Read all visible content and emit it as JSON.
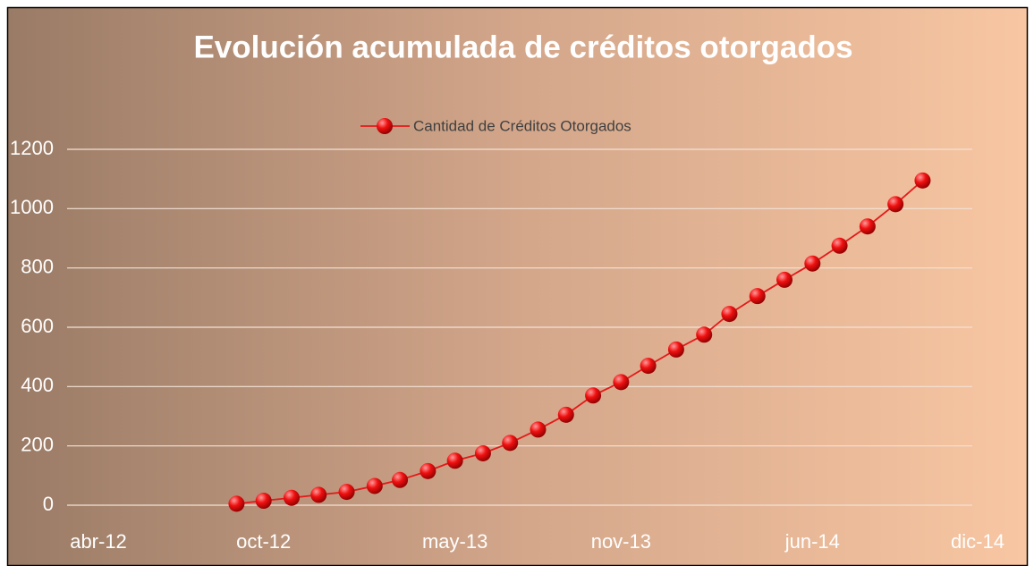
{
  "chart_data": {
    "type": "line",
    "title": "Evolución acumulada de créditos otorgados",
    "x": [
      "2012-09",
      "2012-10",
      "2012-11",
      "2012-12",
      "2013-01",
      "2013-02",
      "2013-03",
      "2013-04",
      "2013-05",
      "2013-06",
      "2013-07",
      "2013-08",
      "2013-09",
      "2013-10",
      "2013-11",
      "2013-12",
      "2014-01",
      "2014-02",
      "2014-03",
      "2014-04",
      "2014-05",
      "2014-06",
      "2014-07",
      "2014-08",
      "2014-09",
      "2014-10"
    ],
    "series": [
      {
        "name": "Cantidad de Créditos Otorgados",
        "color": "#e31a1a",
        "values": [
          5,
          15,
          25,
          35,
          45,
          65,
          85,
          115,
          150,
          175,
          210,
          255,
          305,
          370,
          415,
          470,
          525,
          575,
          645,
          705,
          760,
          815,
          875,
          940,
          1015,
          1095
        ]
      }
    ],
    "xlim": [
      "2012-04",
      "2014-12"
    ],
    "xticks": [
      {
        "value": "2012-04",
        "label": "abr-12"
      },
      {
        "value": "2012-10",
        "label": "oct-12"
      },
      {
        "value": "2013-05",
        "label": "may-13"
      },
      {
        "value": "2013-11",
        "label": "nov-13"
      },
      {
        "value": "2014-06",
        "label": "jun-14"
      },
      {
        "value": "2014-12",
        "label": "dic-14"
      }
    ],
    "ylim": [
      0,
      1200
    ],
    "yticks": [
      0,
      200,
      400,
      600,
      800,
      1000,
      1200
    ],
    "grid": true,
    "legend": "top"
  }
}
